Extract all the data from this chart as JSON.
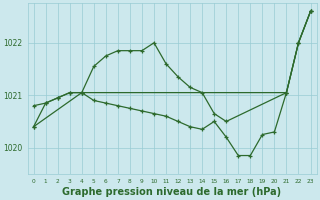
{
  "title": "Graphe pression niveau de la mer (hPa)",
  "background_color": "#cce8ed",
  "grid_color": "#99ccd4",
  "line_color": "#2d6a2d",
  "ylim": [
    1019.5,
    1022.75
  ],
  "yticks": [
    1020,
    1021,
    1022
  ],
  "xlim": [
    -0.5,
    23.5
  ],
  "series1_x": [
    0,
    1,
    2,
    3,
    4,
    5,
    6,
    7,
    8,
    9,
    10,
    11,
    12,
    13,
    14,
    15,
    16,
    21,
    22,
    23
  ],
  "series1_y": [
    1020.8,
    1020.85,
    1020.95,
    1021.05,
    1021.05,
    1021.55,
    1021.75,
    1021.85,
    1021.85,
    1021.85,
    1022.0,
    1021.6,
    1021.35,
    1021.15,
    1021.05,
    1020.65,
    1020.5,
    1021.05,
    1022.0,
    1022.6
  ],
  "series2_x": [
    0,
    4,
    21,
    22,
    23
  ],
  "series2_y": [
    1020.4,
    1021.05,
    1021.05,
    1022.0,
    1022.6
  ],
  "series3_x": [
    0,
    1,
    2,
    3,
    4,
    5,
    6,
    7,
    8,
    9,
    10,
    11,
    12,
    13,
    14,
    15,
    16,
    17,
    18,
    19,
    20,
    21,
    22,
    23
  ],
  "series3_y": [
    1020.4,
    1020.85,
    1020.95,
    1021.05,
    1021.05,
    1020.9,
    1020.85,
    1020.8,
    1020.75,
    1020.7,
    1020.65,
    1020.6,
    1020.5,
    1020.4,
    1020.35,
    1020.5,
    1020.2,
    1019.85,
    1019.85,
    1020.25,
    1020.3,
    1021.05,
    1022.0,
    1022.6
  ],
  "x_labels": [
    "0",
    "1",
    "2",
    "3",
    "4",
    "5",
    "6",
    "7",
    "8",
    "9",
    "10",
    "11",
    "12",
    "13",
    "14",
    "15",
    "16",
    "17",
    "18",
    "19",
    "20",
    "21",
    "22",
    "23"
  ]
}
